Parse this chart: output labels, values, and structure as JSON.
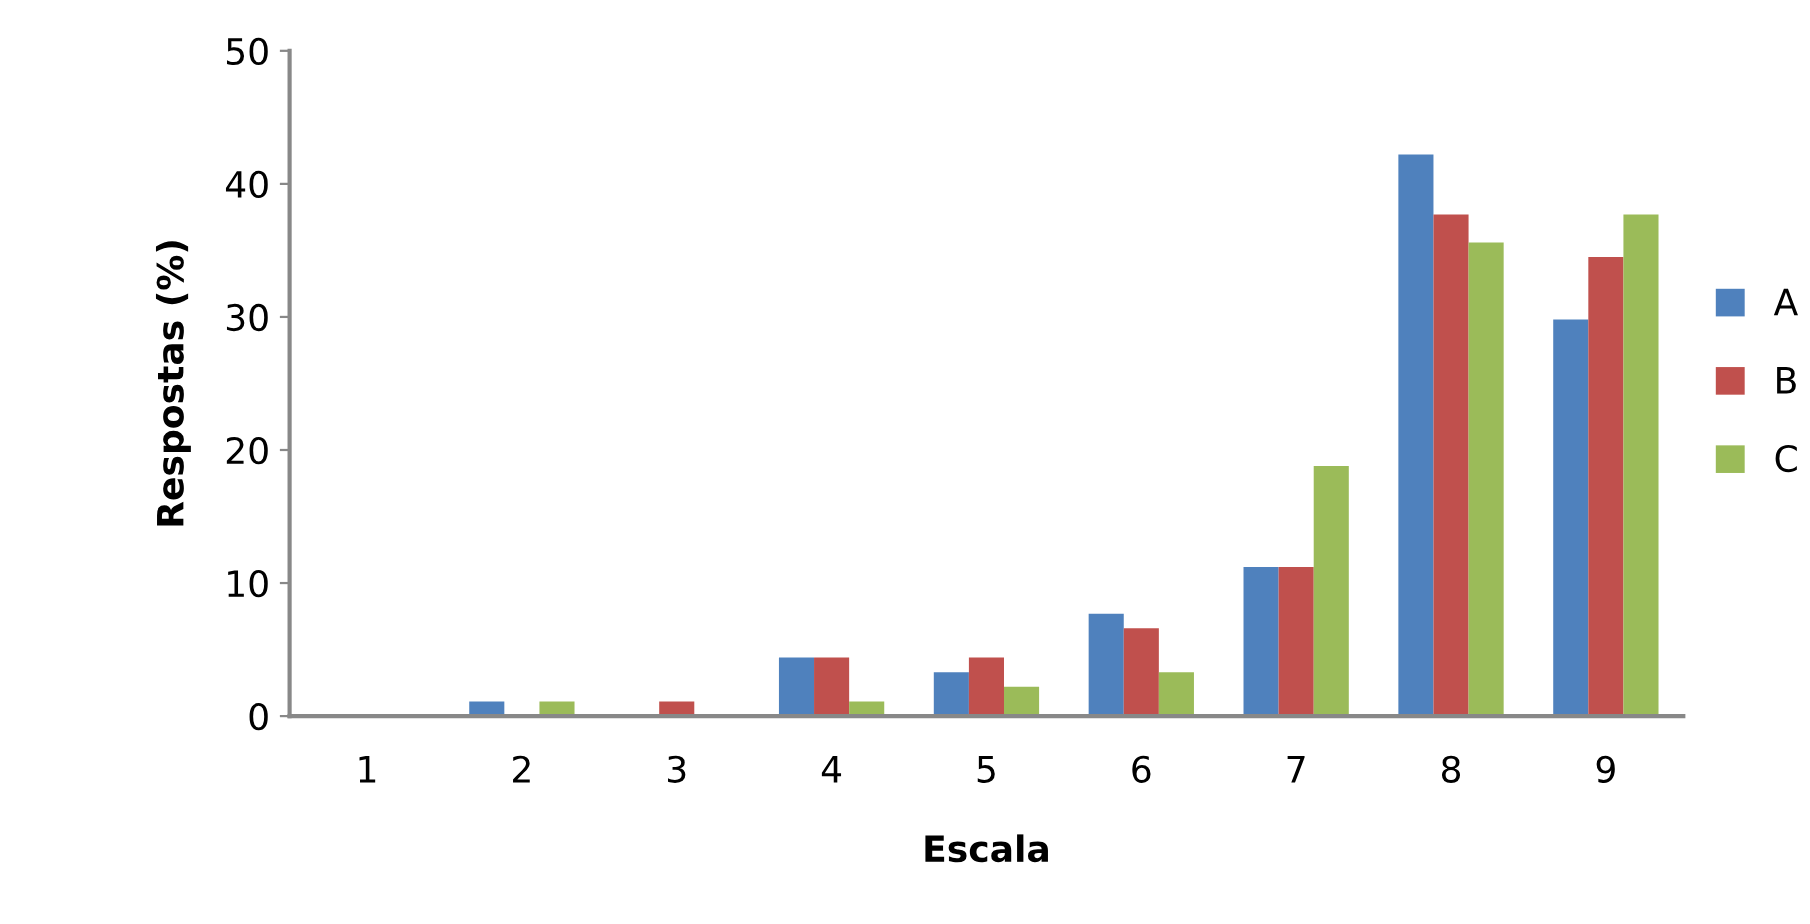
{
  "chart_data": {
    "type": "bar",
    "xlabel": "Escala",
    "ylabel": "Respostas (%)",
    "categories": [
      "1",
      "2",
      "3",
      "4",
      "5",
      "6",
      "7",
      "8",
      "9"
    ],
    "series": [
      {
        "name": "A",
        "color": "#4f81bd",
        "values": [
          0,
          1.1,
          0,
          4.4,
          3.3,
          7.7,
          11.2,
          42.2,
          29.8
        ]
      },
      {
        "name": "B",
        "color": "#c0504d",
        "values": [
          0,
          0,
          1.1,
          4.4,
          4.4,
          6.6,
          11.2,
          37.7,
          34.5
        ]
      },
      {
        "name": "C",
        "color": "#9bbb59",
        "values": [
          0,
          1.1,
          0,
          1.1,
          2.2,
          3.3,
          18.8,
          35.6,
          37.7
        ]
      }
    ],
    "ylim": [
      0,
      50
    ],
    "yticks": [
      0,
      10,
      20,
      30,
      40,
      50
    ],
    "grid": false,
    "legend": "right"
  }
}
